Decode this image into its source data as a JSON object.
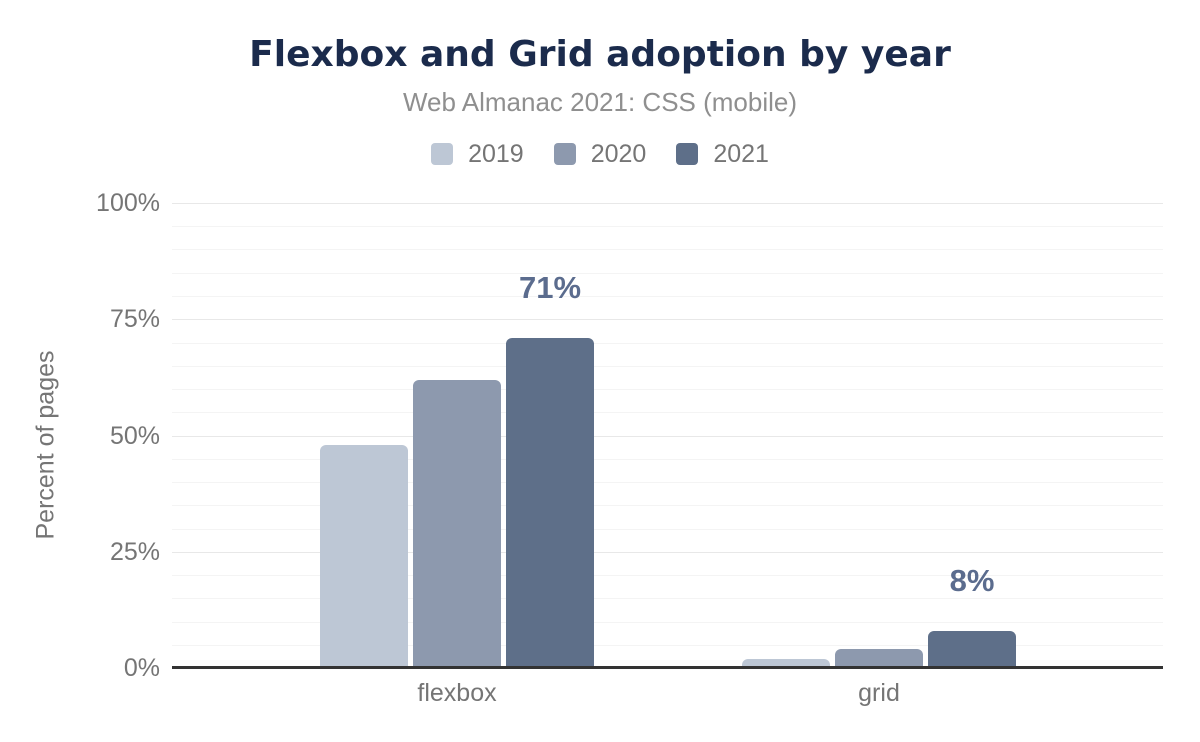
{
  "chart_data": {
    "type": "bar",
    "title": "Flexbox and Grid adoption by year",
    "subtitle": "Web Almanac 2021: CSS (mobile)",
    "ylabel": "Percent of pages",
    "xlabel": "",
    "categories": [
      "flexbox",
      "grid"
    ],
    "series": [
      {
        "name": "2019",
        "color": "#bdc7d5",
        "values": [
          48,
          2
        ]
      },
      {
        "name": "2020",
        "color": "#8d99ae",
        "values": [
          62,
          4
        ]
      },
      {
        "name": "2021",
        "color": "#5e6f89",
        "values": [
          71,
          8
        ]
      }
    ],
    "bar_labels": {
      "series": "2021",
      "texts": [
        "71%",
        "8%"
      ],
      "color": "#5b6c8e"
    },
    "ylim": [
      0,
      100
    ],
    "ytick_labels": [
      "0%",
      "25%",
      "50%",
      "75%",
      "100%"
    ],
    "ytick_step": 25,
    "minor_gridline_step": 5,
    "legend_position": "top",
    "grid": "horizontal",
    "legend_entries": [
      "2019",
      "2020",
      "2021"
    ]
  },
  "colors": {
    "title": "#1b2b4c",
    "subtitle": "#8f8f8f",
    "axis_text": "#757575",
    "axis_line": "#333333",
    "grid_major": "#e8e8e8",
    "grid_minor": "#f4f4f4",
    "background": "#ffffff"
  }
}
